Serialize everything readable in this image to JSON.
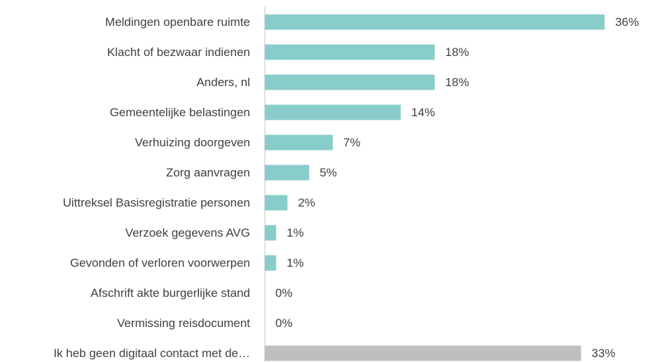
{
  "chart_data": {
    "type": "barh",
    "categories": [
      "Meldingen openbare ruimte",
      "Klacht of bezwaar indienen",
      "Anders, nl",
      "Gemeentelijke belastingen",
      "Verhuizing doorgeven",
      "Zorg aanvragen",
      "Uittreksel Basisregistratie personen",
      "Verzoek gegevens AVG",
      "Gevonden of verloren voorwerpen",
      "Afschrift akte burgerlijke stand",
      "Vermissing reisdocument",
      "Ik heb geen digitaal contact met de…"
    ],
    "values": [
      36,
      18,
      18,
      14.4,
      7.2,
      4.7,
      2.4,
      1.2,
      1.2,
      0,
      0,
      33.5
    ],
    "value_labels": [
      "36%",
      "18%",
      "18%",
      "14%",
      "7%",
      "5%",
      "2%",
      "1%",
      "1%",
      "0%",
      "0%",
      "33%"
    ],
    "colors": [
      "#88cdc9",
      "#88cdc9",
      "#88cdc9",
      "#88cdc9",
      "#88cdc9",
      "#88cdc9",
      "#88cdc9",
      "#88cdc9",
      "#88cdc9",
      "#88cdc9",
      "#88cdc9",
      "#bfbfbf"
    ],
    "xlim": [
      0,
      40
    ]
  }
}
